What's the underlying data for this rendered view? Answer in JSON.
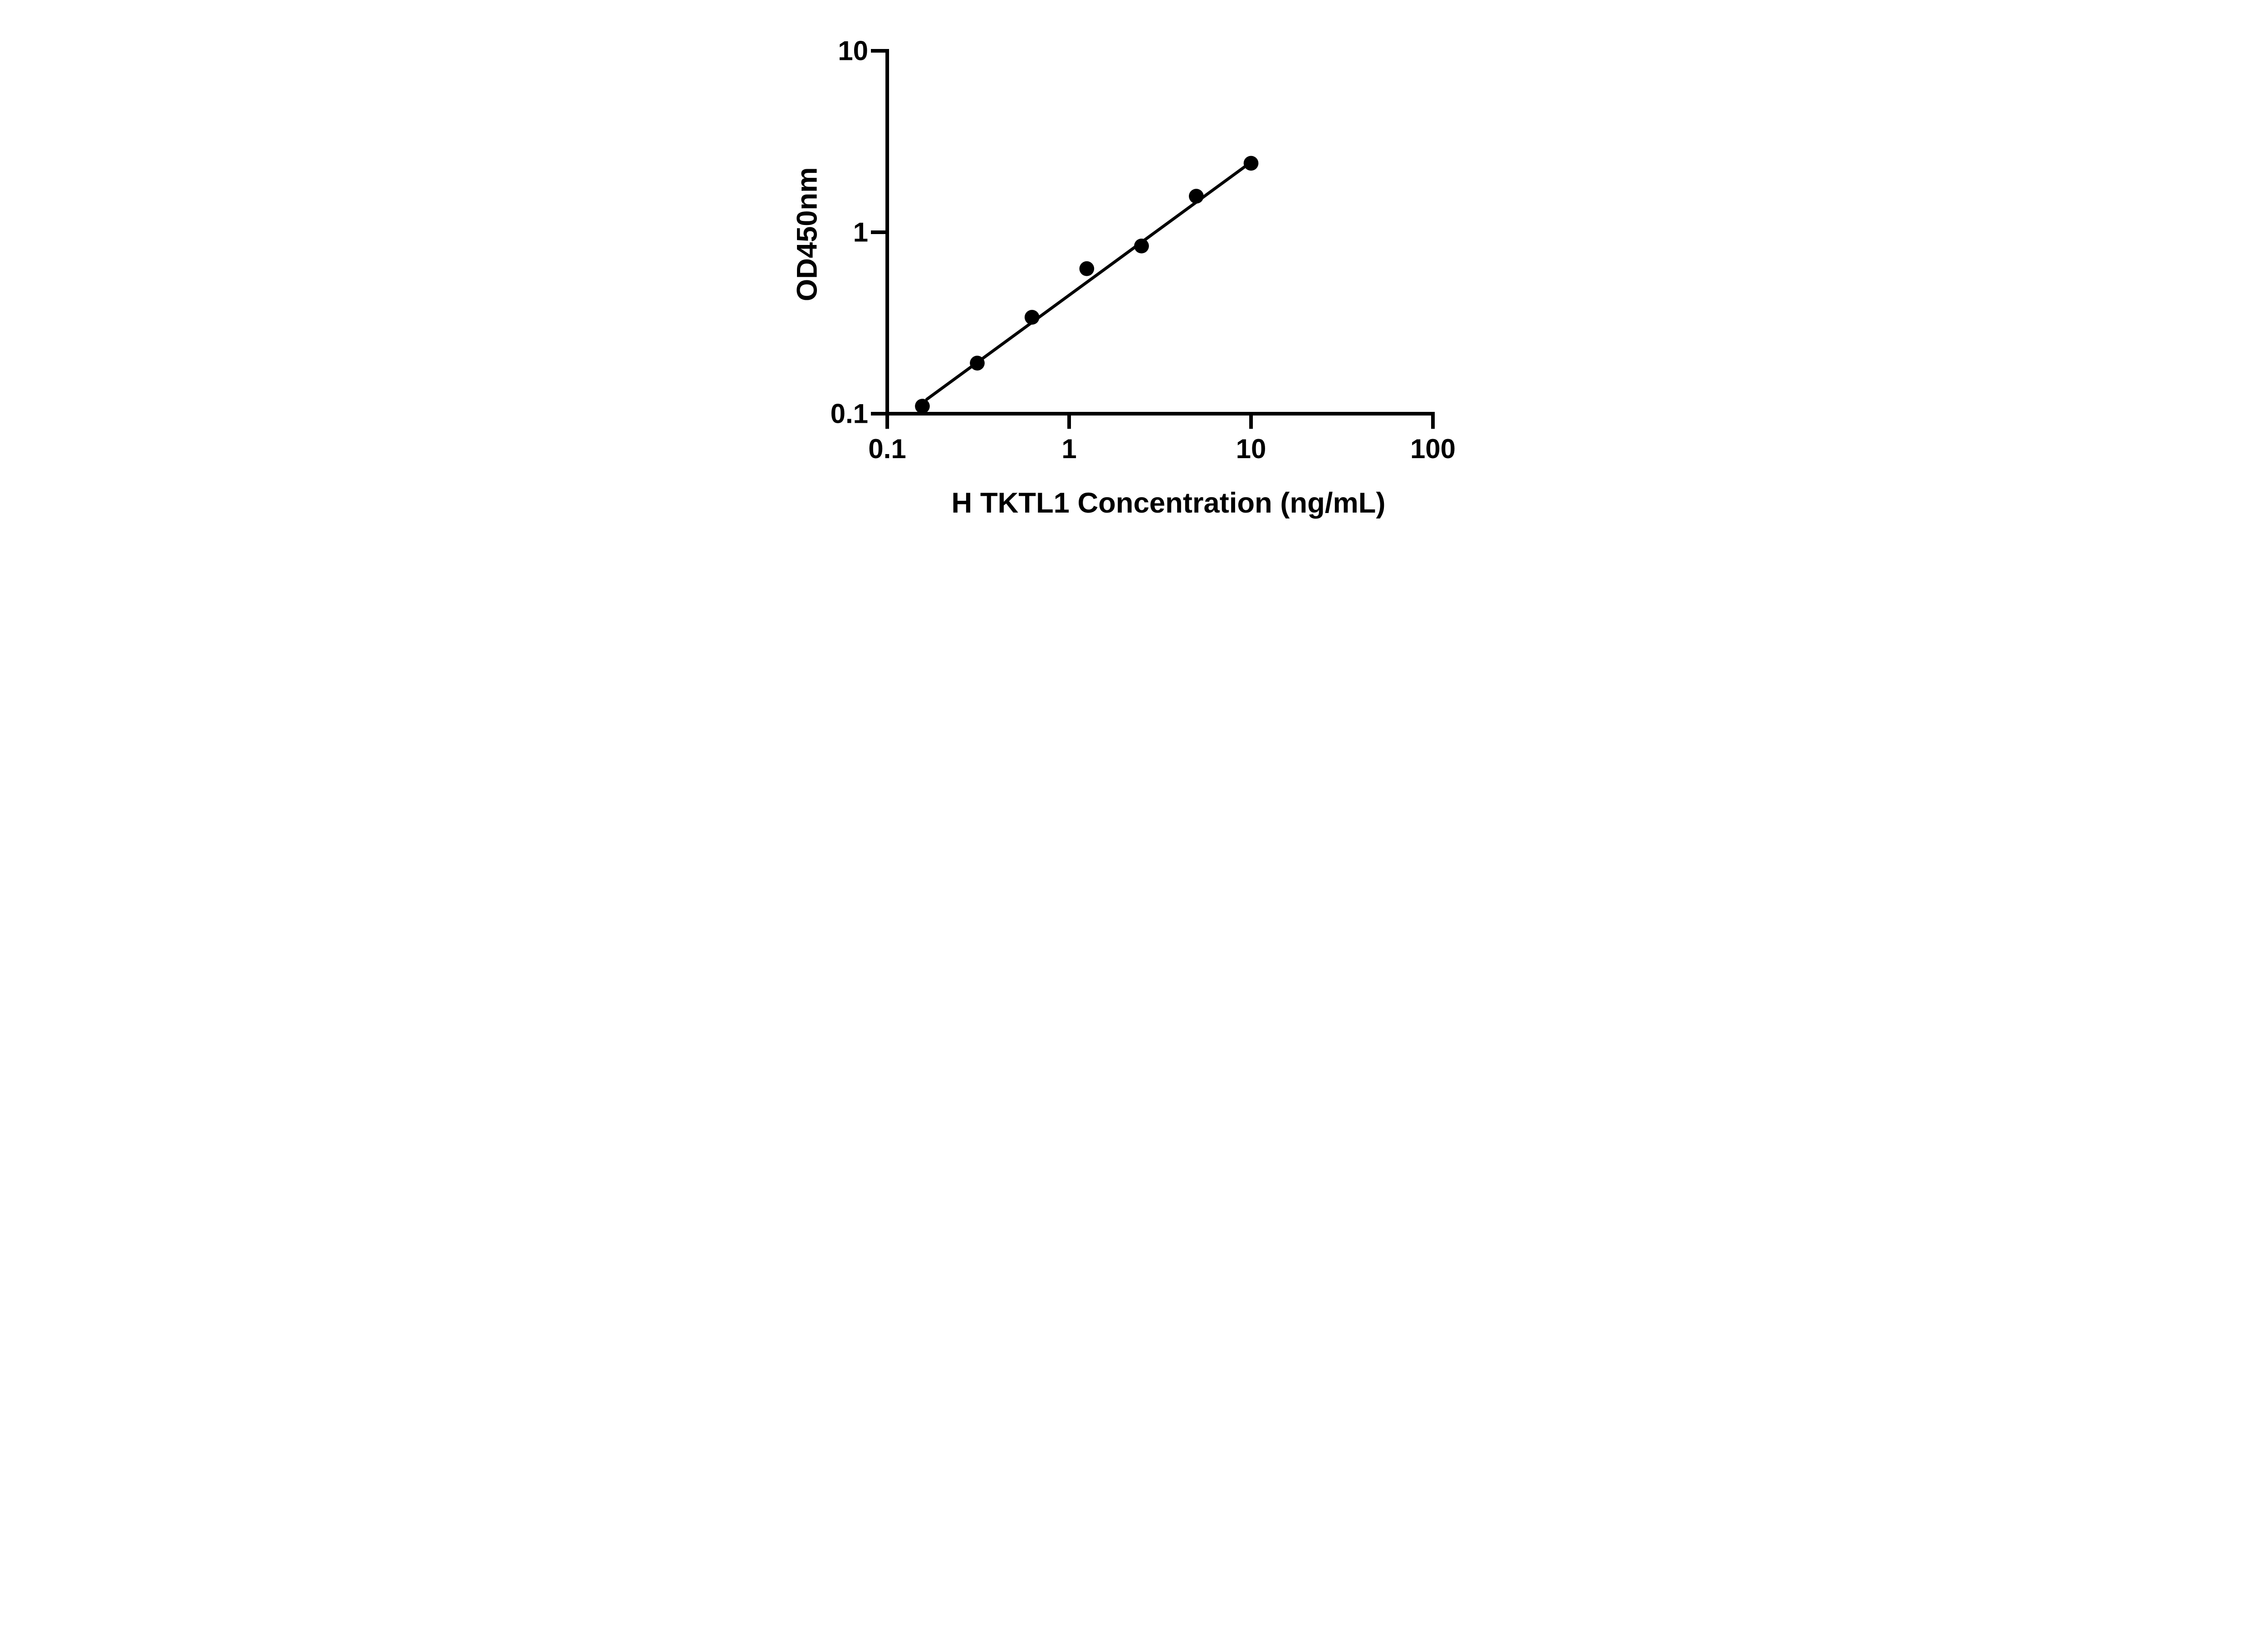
{
  "chart_data": {
    "type": "scatter",
    "title": "",
    "xlabel": "H TKTL1 Concentration (ng/mL)",
    "ylabel": "OD450nm",
    "x_scale": "log",
    "y_scale": "log",
    "xlim": [
      0.1,
      100
    ],
    "ylim": [
      0.1,
      10
    ],
    "grid": false,
    "legend": "none",
    "x_ticks": [
      {
        "value": 0.1,
        "label": "0.1"
      },
      {
        "value": 1,
        "label": "1"
      },
      {
        "value": 10,
        "label": "10"
      },
      {
        "value": 100,
        "label": "100"
      }
    ],
    "y_ticks": [
      {
        "value": 0.1,
        "label": "0.1"
      },
      {
        "value": 1,
        "label": "1"
      },
      {
        "value": 10,
        "label": "10"
      }
    ],
    "series": [
      {
        "name": "standard-curve-points",
        "marker": "filled-circle",
        "points": [
          {
            "conc": 0.156,
            "od": 0.11
          },
          {
            "conc": 0.3125,
            "od": 0.19
          },
          {
            "conc": 0.625,
            "od": 0.34
          },
          {
            "conc": 1.25,
            "od": 0.63
          },
          {
            "conc": 2.5,
            "od": 0.84
          },
          {
            "conc": 5,
            "od": 1.58
          },
          {
            "conc": 10,
            "od": 2.4
          }
        ]
      }
    ],
    "fit_line": {
      "start": {
        "conc": 0.165,
        "od": 0.12
      },
      "end": {
        "conc": 9.2,
        "od": 2.29
      }
    },
    "colors": {
      "foreground": "#000000",
      "background": "#ffffff"
    }
  }
}
